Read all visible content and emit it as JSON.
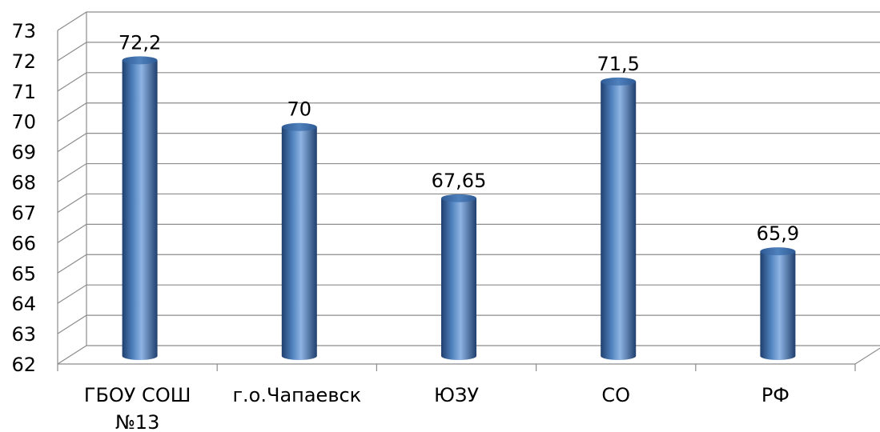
{
  "chart_data": {
    "type": "bar",
    "categories": [
      "ГБОУ СОШ №13",
      "г.о.Чапаевск",
      "ЮЗУ",
      "СО",
      "РФ"
    ],
    "category_lines": [
      [
        "ГБОУ СОШ",
        "№13"
      ],
      [
        "г.о.Чапаевск"
      ],
      [
        "ЮЗУ"
      ],
      [
        "СО"
      ],
      [
        "РФ"
      ]
    ],
    "values": [
      72.2,
      70,
      67.65,
      71.5,
      65.9
    ],
    "data_labels": [
      "72,2",
      "70",
      "67,65",
      "71,5",
      "65,9"
    ],
    "yticks": [
      "62",
      "63",
      "64",
      "65",
      "66",
      "67",
      "68",
      "69",
      "70",
      "71",
      "72",
      "73"
    ],
    "ylim": [
      62,
      73
    ],
    "title": "",
    "xlabel": "",
    "ylabel": "",
    "grid": true,
    "legend": "none",
    "style": "3d-cylinder",
    "colors": {
      "bar_base": "#4f81bd",
      "bar_light": "#8eb4e3",
      "bar_dark": "#1f3f6e",
      "grid": "#8c8c8c"
    }
  }
}
